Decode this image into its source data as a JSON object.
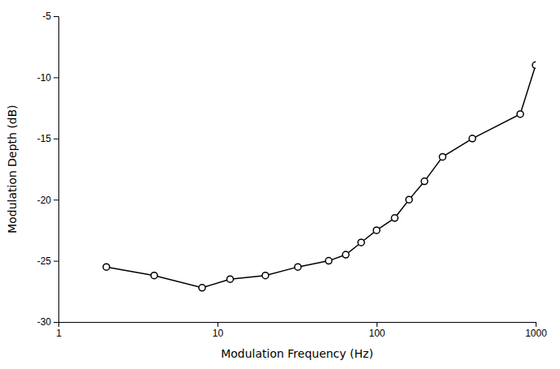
{
  "chart_data": {
    "type": "line",
    "x": [
      2,
      4,
      8,
      12,
      20,
      32,
      50,
      64,
      80,
      100,
      130,
      160,
      200,
      260,
      400,
      800,
      1000
    ],
    "values": [
      -25.5,
      -26.2,
      -27.2,
      -26.5,
      -26.2,
      -25.5,
      -25.0,
      -24.5,
      -23.5,
      -22.5,
      -21.5,
      -20.0,
      -18.5,
      -16.5,
      -15.0,
      -13.0,
      -9.0
    ],
    "xlabel": "Modulation Frequency (Hz)",
    "ylabel": "Modulation Depth (dB)",
    "xlim": [
      1,
      1000
    ],
    "ylim": [
      -30,
      -5
    ],
    "xticks": [
      1,
      10,
      100,
      1000
    ],
    "yticks": [
      -5,
      -10,
      -15,
      -20,
      -25,
      -30
    ],
    "log": "x",
    "grid": false,
    "color": "#000000",
    "marker": "circle"
  }
}
